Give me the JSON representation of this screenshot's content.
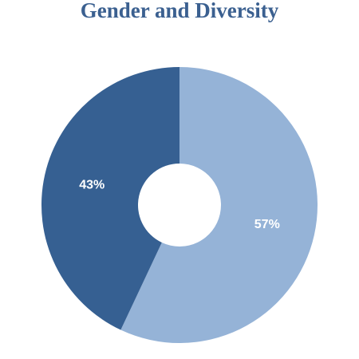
{
  "chart_data": {
    "type": "donut",
    "title": "Gender and Diversity",
    "values": [
      57,
      43
    ],
    "value_labels": [
      "57%",
      "43%"
    ],
    "colors": [
      "#95b3d7",
      "#366092"
    ]
  }
}
